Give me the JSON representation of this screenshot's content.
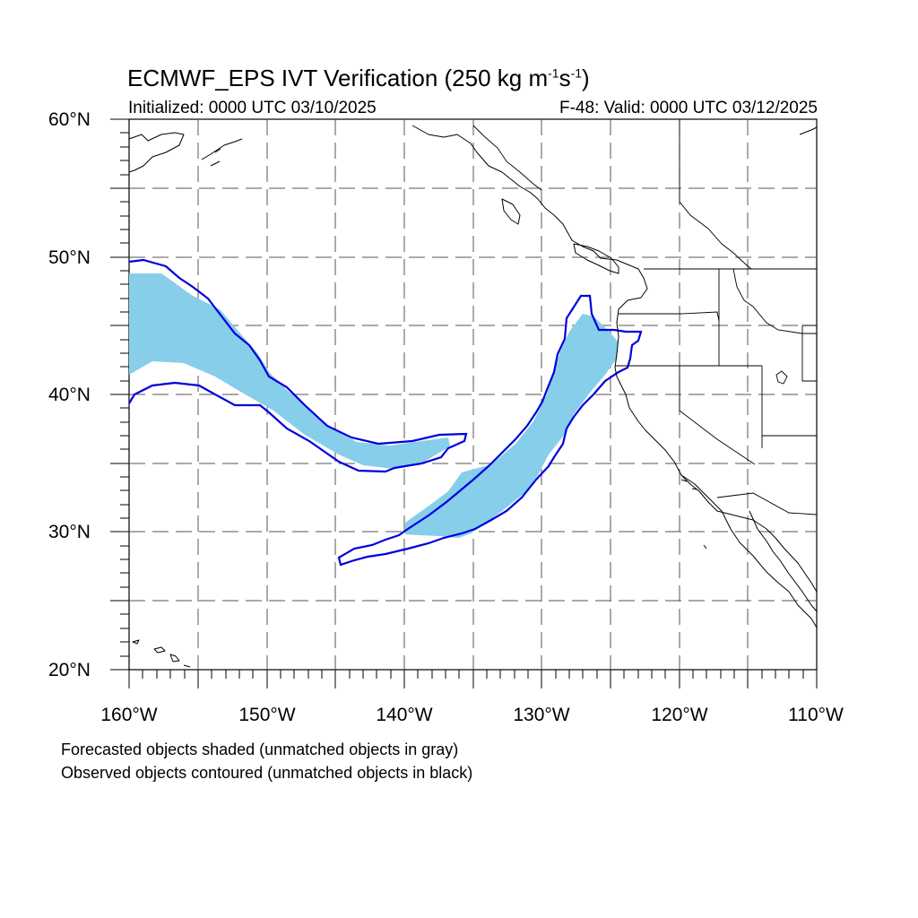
{
  "header": {
    "title_prefix": "ECMWF_EPS IVT Verification (250 kg m",
    "title_exp1": "-1",
    "title_mid": "s",
    "title_exp2": "-1",
    "title_suffix": ")",
    "initialized": "Initialized: 0000 UTC 03/10/2025",
    "valid": "F-48: Valid: 0000 UTC 03/12/2025"
  },
  "axes": {
    "lat_labels": [
      "60°N",
      "50°N",
      "40°N",
      "30°N",
      "20°N"
    ],
    "lon_labels": [
      "160°W",
      "150°W",
      "140°W",
      "130°W",
      "120°W",
      "110°W"
    ]
  },
  "footer": {
    "line1": "Forecasted objects shaded (unmatched objects in gray)",
    "line2": "Observed objects contoured (unmatched objects in black)"
  },
  "colors": {
    "forecast_fill": "#87ceeb",
    "observed_contour": "#0000dd",
    "grid": "#555555",
    "coastline": "#000000"
  }
}
